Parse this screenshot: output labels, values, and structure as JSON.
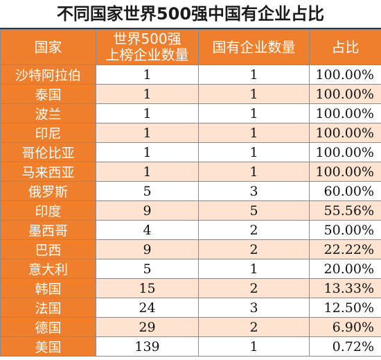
{
  "title": "不同国家世界500强中国有企业占比",
  "columns": {
    "country": "国家",
    "top500_line1": "世界500强",
    "top500_line2": "上榜企业数量",
    "soe": "国有企业数量",
    "ratio": "占比"
  },
  "chart_data": {
    "type": "table",
    "title": "不同国家世界500强中国有企业占比",
    "headers": [
      "国家",
      "世界500强上榜企业数量",
      "国有企业数量",
      "占比"
    ],
    "rows": [
      {
        "country": "沙特阿拉伯",
        "total": "1",
        "soe": "1",
        "ratio": "100.00%"
      },
      {
        "country": "泰国",
        "total": "1",
        "soe": "1",
        "ratio": "100.00%"
      },
      {
        "country": "波兰",
        "total": "1",
        "soe": "1",
        "ratio": "100.00%"
      },
      {
        "country": "印尼",
        "total": "1",
        "soe": "1",
        "ratio": "100.00%"
      },
      {
        "country": "哥伦比亚",
        "total": "1",
        "soe": "1",
        "ratio": "100.00%"
      },
      {
        "country": "马来西亚",
        "total": "1",
        "soe": "1",
        "ratio": "100.00%"
      },
      {
        "country": "俄罗斯",
        "total": "5",
        "soe": "3",
        "ratio": "60.00%"
      },
      {
        "country": "印度",
        "total": "9",
        "soe": "5",
        "ratio": "55.56%"
      },
      {
        "country": "墨西哥",
        "total": "4",
        "soe": "2",
        "ratio": "50.00%"
      },
      {
        "country": "巴西",
        "total": "9",
        "soe": "2",
        "ratio": "22.22%"
      },
      {
        "country": "意大利",
        "total": "5",
        "soe": "1",
        "ratio": "20.00%"
      },
      {
        "country": "韩国",
        "total": "15",
        "soe": "2",
        "ratio": "13.33%"
      },
      {
        "country": "法国",
        "total": "24",
        "soe": "3",
        "ratio": "12.50%"
      },
      {
        "country": "德国",
        "total": "29",
        "soe": "2",
        "ratio": "6.90%"
      },
      {
        "country": "美国",
        "total": "139",
        "soe": "1",
        "ratio": "0.72%"
      }
    ]
  },
  "colors": {
    "header_bg": "#ef7f2c",
    "stripe_bg": "#fde3d0"
  }
}
